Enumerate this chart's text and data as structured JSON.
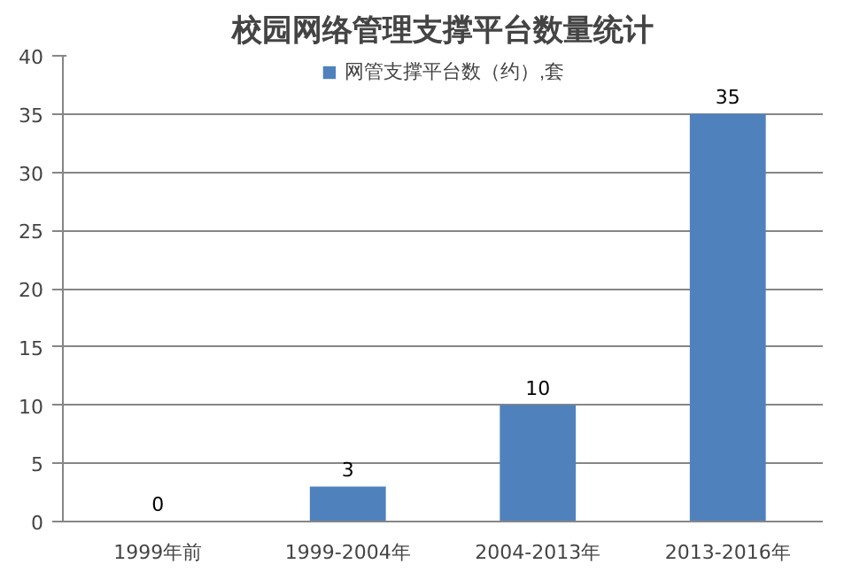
{
  "chart_data": {
    "type": "bar",
    "title": "校园网络管理支撑平台数量统计",
    "categories": [
      "1999年前",
      "1999-2004年",
      "2004-2013年",
      "2013-2016年"
    ],
    "series": [
      {
        "name": "网管支撑平台数（约）,套",
        "color": "#4f81bd",
        "values": [
          0,
          3,
          10,
          35
        ]
      }
    ],
    "ylim": [
      0,
      40
    ],
    "yticks": [
      0,
      5,
      10,
      15,
      20,
      25,
      30,
      35,
      40
    ],
    "grid": "y",
    "legend": "top",
    "data_labels": true
  }
}
